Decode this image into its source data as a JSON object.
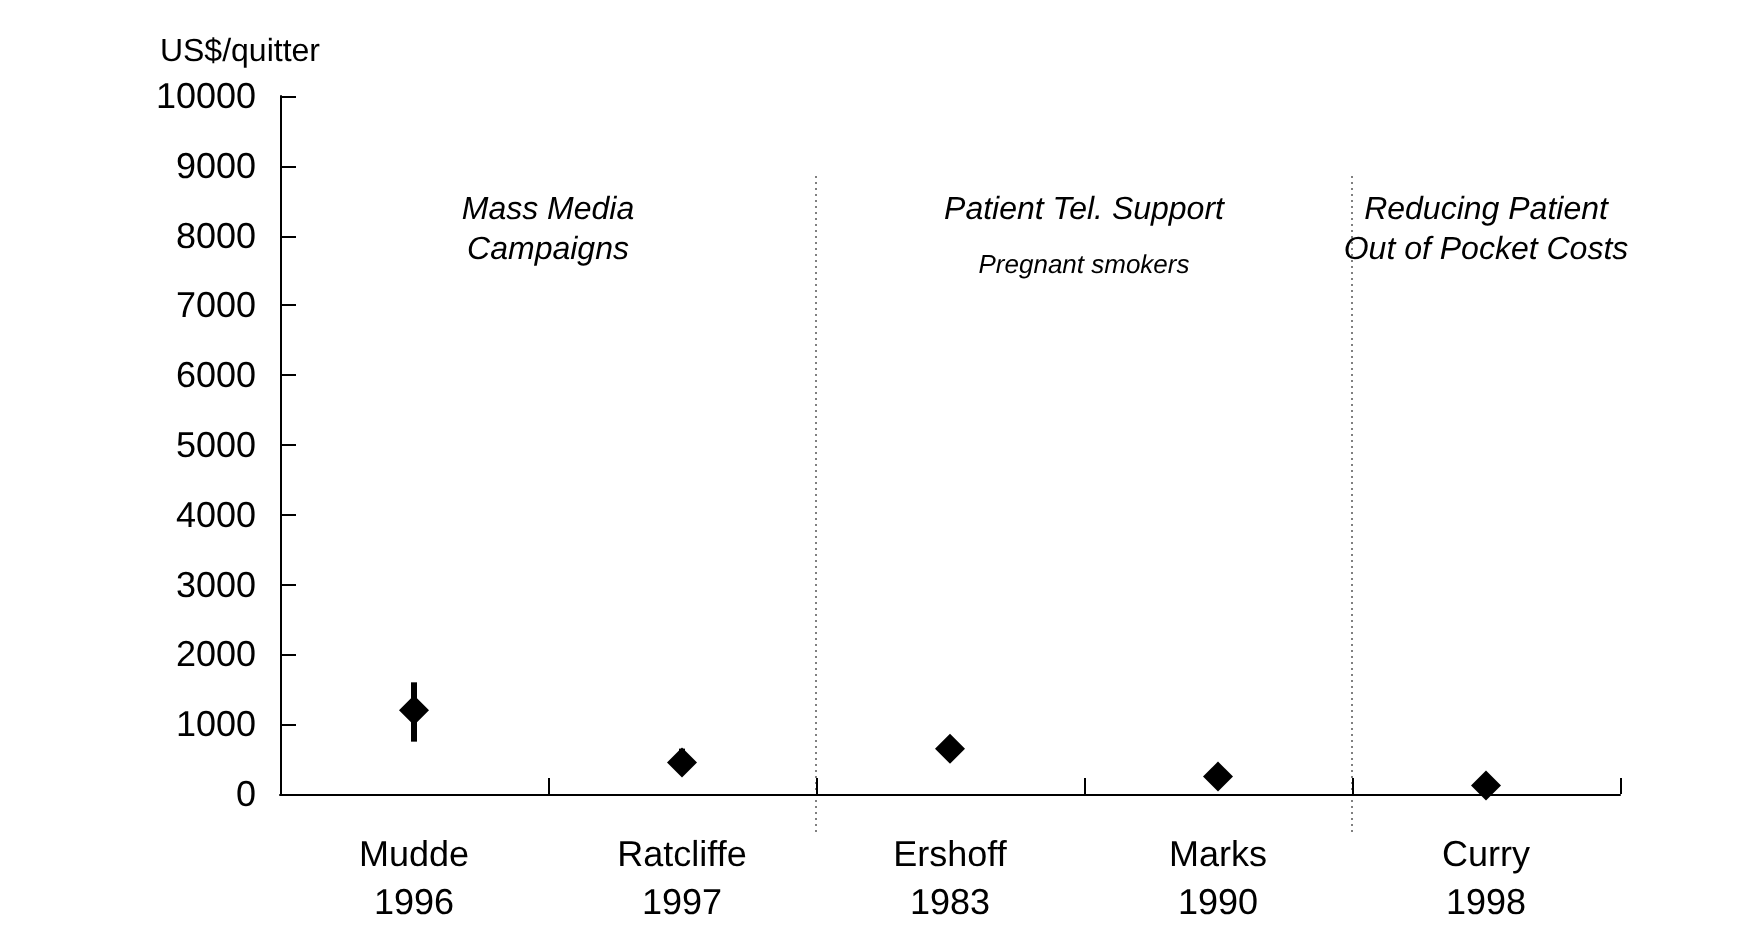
{
  "chart_data": {
    "type": "scatter",
    "ylabel": "US$/quitter",
    "categories": [
      "Mudde\n1996",
      "Ratcliffe\n1997",
      "Ershoff\n1983",
      "Marks\n1990",
      "Curry\n1998"
    ],
    "values": [
      1200,
      450,
      650,
      250,
      120
    ],
    "errors": [
      [
        750,
        1600
      ],
      [
        400,
        650
      ],
      null,
      null,
      null
    ],
    "color": "#000000",
    "marker": "diamond",
    "grid": false,
    "ylim": [
      0,
      10000
    ],
    "yticks": [
      0,
      1000,
      2000,
      3000,
      4000,
      5000,
      6000,
      7000,
      8000,
      9000,
      10000
    ],
    "annotations": [
      "Mass Media\nCampaigns",
      "Patient Tel. Support",
      "Pregnant smokers",
      "Reducing Patient\nOut of Pocket Costs"
    ]
  }
}
